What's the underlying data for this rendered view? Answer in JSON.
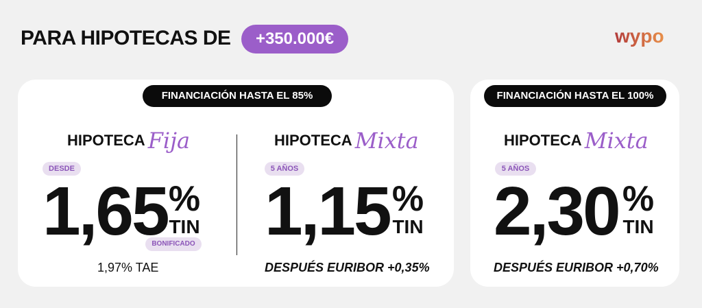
{
  "header": {
    "title": "PARA HIPOTECAS DE",
    "amount": "+350.000€"
  },
  "brand": {
    "logo_text": "wypo",
    "colors": {
      "accent": "#9b5ec9",
      "logo_start": "#b23a3a",
      "logo_end": "#e8904a"
    }
  },
  "cards": [
    {
      "financing": "FINANCIACIÓN HASTA EL 85%",
      "products": [
        {
          "title_main": "HIPOTECA",
          "title_script": "Fija",
          "badge": "DESDE",
          "rate": "1,65",
          "percent": "%",
          "unit": "TIN",
          "extra_badge": "BONIFICADO",
          "footer": "1,97% TAE"
        },
        {
          "title_main": "HIPOTECA",
          "title_script": "Mixta",
          "badge": "5 AÑOS",
          "rate": "1,15",
          "percent": "%",
          "unit": "TIN",
          "footer": "DESPUÉS EURIBOR +0,35%"
        }
      ]
    },
    {
      "financing": "FINANCIACIÓN HASTA EL 100%",
      "products": [
        {
          "title_main": "HIPOTECA",
          "title_script": "Mixta",
          "badge": "5 AÑOS",
          "rate": "2,30",
          "percent": "%",
          "unit": "TIN",
          "footer": "DESPUÉS EURIBOR +0,70%"
        }
      ]
    }
  ]
}
